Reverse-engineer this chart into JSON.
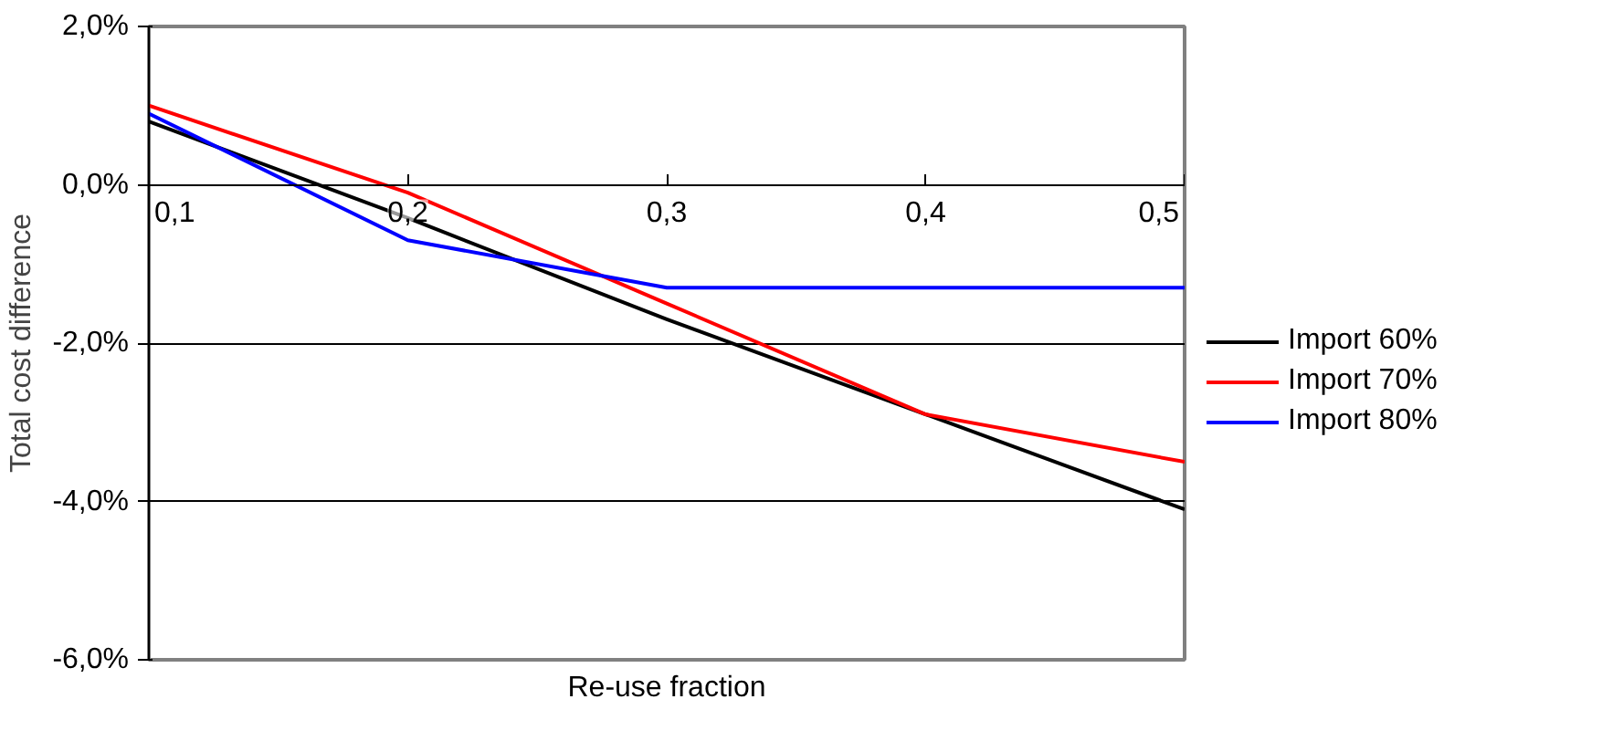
{
  "chart_data": {
    "type": "line",
    "xlabel": "Re-use fraction",
    "ylabel": "Total cost difference",
    "x": [
      0.1,
      0.2,
      0.3,
      0.4,
      0.5
    ],
    "xlim": [
      0.1,
      0.5
    ],
    "xticks": [
      {
        "value": 0.1,
        "label": "0,1"
      },
      {
        "value": 0.2,
        "label": "0,2"
      },
      {
        "value": 0.3,
        "label": "0,3"
      },
      {
        "value": 0.4,
        "label": "0,4"
      },
      {
        "value": 0.5,
        "label": "0,5"
      }
    ],
    "ylim": [
      -6,
      2
    ],
    "yticks": [
      {
        "value": -6,
        "label": "-6,0%"
      },
      {
        "value": -4,
        "label": "-4,0%"
      },
      {
        "value": -2,
        "label": "-2,0%"
      },
      {
        "value": 0,
        "label": "0,0%"
      },
      {
        "value": 2,
        "label": "2,0%"
      }
    ],
    "series": [
      {
        "name": "Import 60%",
        "color": "#000000",
        "values": [
          0.8,
          -0.42,
          -1.7,
          -2.9,
          -4.1
        ]
      },
      {
        "name": "Import 70%",
        "color": "#ff0000",
        "values": [
          1.0,
          -0.1,
          -1.5,
          -2.9,
          -3.5
        ]
      },
      {
        "name": "Import 80%",
        "color": "#0000ff",
        "values": [
          0.9,
          -0.7,
          -1.3,
          -1.3,
          -1.3
        ]
      }
    ],
    "grid": "y",
    "legend": "right",
    "marker": "none",
    "line_style": "solid"
  }
}
